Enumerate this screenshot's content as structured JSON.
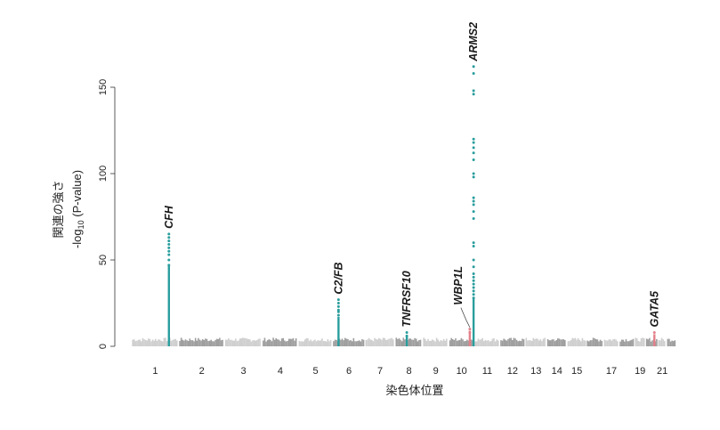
{
  "chart_data": {
    "type": "scatter",
    "subtype": "manhattan",
    "xlabel": "染色体位置",
    "ylabel_line1": "関連の強さ",
    "ylabel_line2_pre": "-log",
    "ylabel_line2_sub": "10",
    "ylabel_line2_post": " (P-value)",
    "yticks": [
      0,
      50,
      100,
      150
    ],
    "ylim": [
      0,
      150
    ],
    "chromosome_labels": [
      "1",
      "2",
      "3",
      "4",
      "5",
      "6",
      "7",
      "8",
      "9",
      "10",
      "11",
      "12",
      "13",
      "14",
      "15",
      "17",
      "19",
      "21"
    ],
    "chromosomes": [
      {
        "chr": "1",
        "start": 0,
        "end": 248
      },
      {
        "chr": "2",
        "start": 248,
        "end": 490
      },
      {
        "chr": "3",
        "start": 490,
        "end": 688
      },
      {
        "chr": "4",
        "start": 688,
        "end": 878
      },
      {
        "chr": "5",
        "start": 878,
        "end": 1059
      },
      {
        "chr": "6",
        "start": 1059,
        "end": 1230
      },
      {
        "chr": "7",
        "start": 1230,
        "end": 1389
      },
      {
        "chr": "8",
        "start": 1389,
        "end": 1534
      },
      {
        "chr": "9",
        "start": 1534,
        "end": 1672
      },
      {
        "chr": "10",
        "start": 1672,
        "end": 1806
      },
      {
        "chr": "11",
        "start": 1806,
        "end": 1941
      },
      {
        "chr": "12",
        "start": 1941,
        "end": 2074
      },
      {
        "chr": "13",
        "start": 2074,
        "end": 2188
      },
      {
        "chr": "14",
        "start": 2188,
        "end": 2295
      },
      {
        "chr": "15",
        "start": 2295,
        "end": 2397
      },
      {
        "chr": "16",
        "start": 2397,
        "end": 2487
      },
      {
        "chr": "17",
        "start": 2487,
        "end": 2570
      },
      {
        "chr": "18",
        "start": 2570,
        "end": 2650
      },
      {
        "chr": "19",
        "start": 2650,
        "end": 2709
      },
      {
        "chr": "20",
        "start": 2709,
        "end": 2773
      },
      {
        "chr": "21",
        "start": 2773,
        "end": 2820
      },
      {
        "chr": "22",
        "start": 2820,
        "end": 2871
      }
    ],
    "background_max": 5,
    "colors": {
      "light": "#cfcfcf",
      "dark": "#9e9e9e",
      "hit": "#2a9d9d",
      "sub": "#e3808a"
    },
    "hits": [
      {
        "gene": "CFH",
        "x": 196,
        "values": [
          65,
          63,
          61,
          59,
          57,
          55,
          53,
          50,
          47
        ],
        "bar_top": 47,
        "color": "teal"
      },
      {
        "gene": "C2/FB",
        "x": 1090,
        "values": [
          27,
          25,
          23,
          21,
          20,
          18
        ],
        "bar_top": 17,
        "color": "teal"
      },
      {
        "gene": "TNFRSF10",
        "x": 1450,
        "values": [
          8,
          6
        ],
        "bar_top": 6,
        "color": "teal"
      },
      {
        "gene": "WBP1L",
        "x": 1782,
        "values": [
          10,
          8
        ],
        "bar_top": 9,
        "color": "pink"
      },
      {
        "gene": "ARMS2",
        "x": 1802,
        "values": [
          162,
          158,
          148,
          146,
          120,
          118,
          115,
          112,
          108,
          100,
          98,
          86,
          84,
          82,
          78,
          74,
          60,
          58,
          50,
          46,
          42,
          40,
          38,
          36,
          34,
          32,
          30,
          28
        ],
        "bar_top": 28,
        "color": "teal"
      },
      {
        "gene": "GATA5",
        "x": 2755,
        "values": [
          8
        ],
        "bar_top": 7,
        "color": "pink"
      }
    ]
  }
}
